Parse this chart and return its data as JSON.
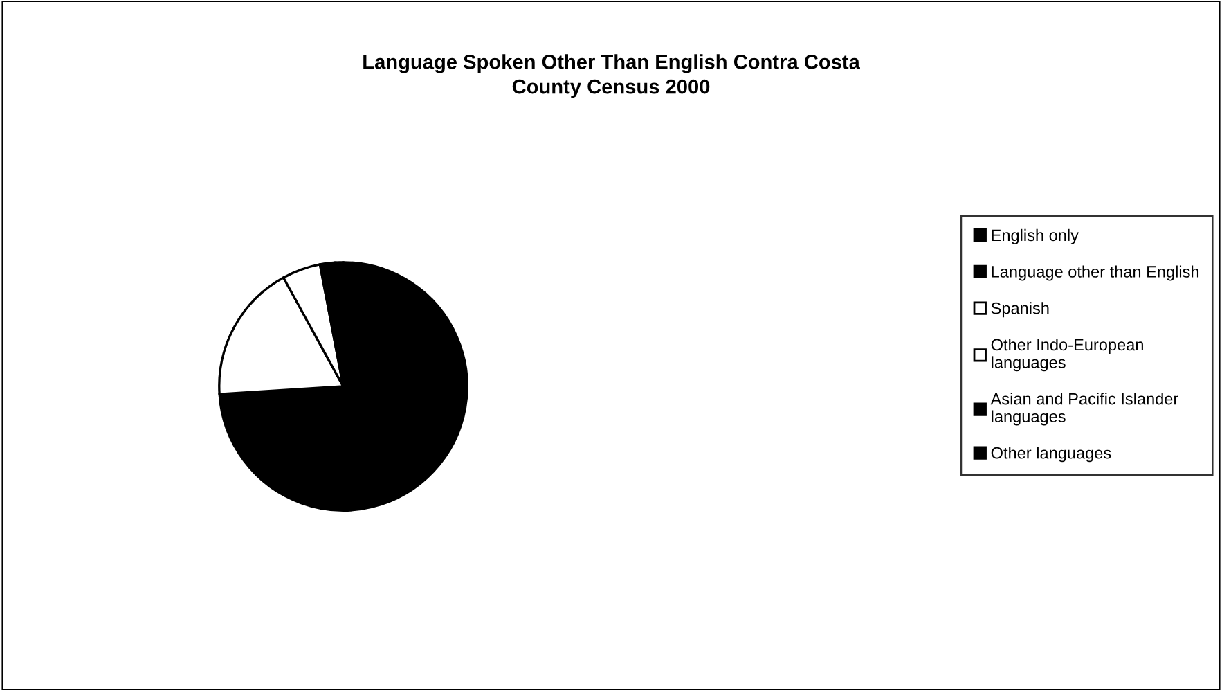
{
  "chart_data": {
    "type": "pie",
    "title": "Language Spoken Other Than English Contra Costa County Census 2000",
    "categories": [
      "English only",
      "Language other than English",
      "Spanish",
      "Other Indo-European languages",
      "Asian and Pacific Islander languages",
      "Other languages"
    ],
    "values": [
      74,
      0,
      18,
      5,
      2,
      1
    ],
    "colors": [
      "#000000",
      "#000000",
      "#ffffff",
      "#ffffff",
      "#000000",
      "#000000"
    ],
    "legend": "right"
  }
}
